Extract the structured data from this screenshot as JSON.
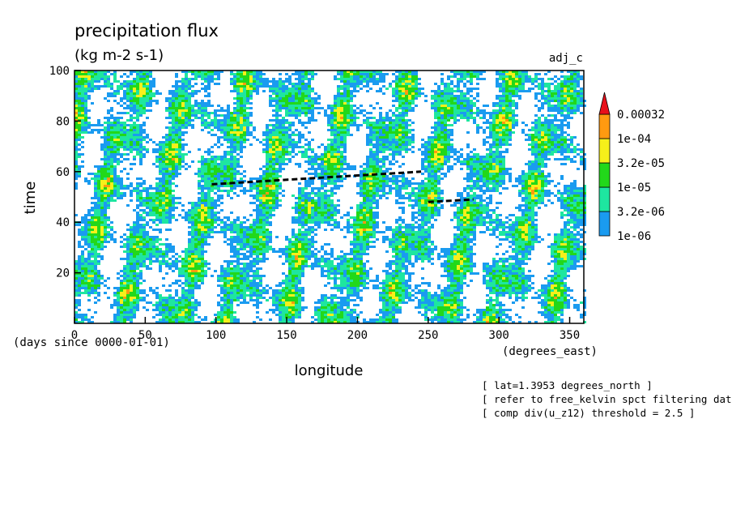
{
  "chart_data": {
    "type": "heatmap",
    "title": "precipitation flux",
    "subtitle": "(kg m-2 s-1)",
    "corner_label": "adj_c",
    "xlabel": "longitude",
    "x_units": "(degrees_east)",
    "ylabel": "time",
    "y_units": "(days since 0000-01-01)",
    "xlim": [
      0,
      360
    ],
    "ylim": [
      0,
      100
    ],
    "x_ticks": [
      0,
      50,
      100,
      150,
      200,
      250,
      300,
      350
    ],
    "y_ticks": [
      20,
      40,
      60,
      80,
      100
    ],
    "colorbar": {
      "levels": [
        "1e-06",
        "3.2e-06",
        "1e-05",
        "3.2e-05",
        "1e-04",
        "0.00032"
      ],
      "colors": [
        "#1a9bf0",
        "#1ee6a0",
        "#22d81a",
        "#f6f01a",
        "#ff9a10",
        "#e8101a"
      ]
    },
    "dashed_lines": [
      {
        "points": [
          [
            97,
            55
          ],
          [
            245,
            60
          ]
        ]
      },
      {
        "points": [
          [
            250,
            48
          ],
          [
            282,
            49
          ]
        ]
      }
    ],
    "notes": [
      "[ lat=1.3953 degrees_north ]",
      "[ refer to free_kelvin spct filtering data ]",
      "[ comp div(u_z12) threshold = 2.5 ]"
    ]
  }
}
